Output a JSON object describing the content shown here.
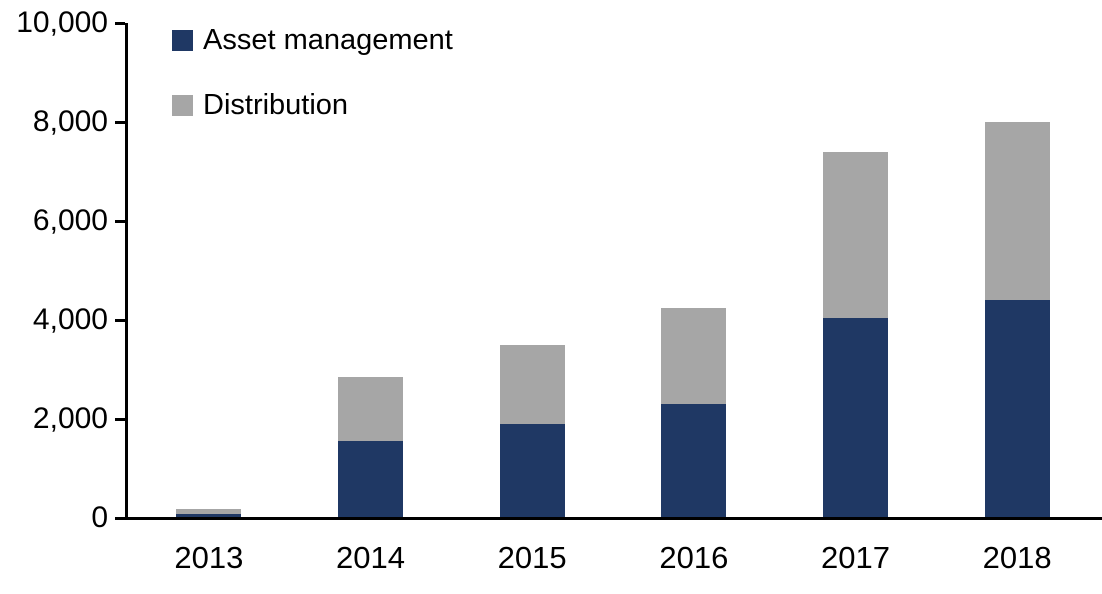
{
  "chart_data": {
    "type": "bar",
    "stacked": true,
    "title": "",
    "xlabel": "",
    "ylabel": "",
    "categories": [
      "2013",
      "2014",
      "2015",
      "2016",
      "2017",
      "2018"
    ],
    "series": [
      {
        "name": "Asset management",
        "color": "#1F3864",
        "values": [
          80,
          1550,
          1900,
          2300,
          4050,
          4400
        ]
      },
      {
        "name": "Distribution",
        "color": "#A6A6A6",
        "values": [
          100,
          1300,
          1600,
          1950,
          3350,
          3600
        ]
      }
    ],
    "totals": [
      180,
      2850,
      3500,
      4250,
      7400,
      8000
    ],
    "ylim": [
      0,
      10000
    ],
    "yticks": [
      {
        "value": 0,
        "label": "0"
      },
      {
        "value": 2000,
        "label": "2,000"
      },
      {
        "value": 4000,
        "label": "4,000"
      },
      {
        "value": 6000,
        "label": "6,000"
      },
      {
        "value": 8000,
        "label": "8,000"
      },
      {
        "value": 10000,
        "label": "10,000"
      }
    ],
    "legend_position": "top-left",
    "grid": false,
    "axis_color": "#000000",
    "text_color": "#000000",
    "background_color": "#FFFFFF"
  }
}
